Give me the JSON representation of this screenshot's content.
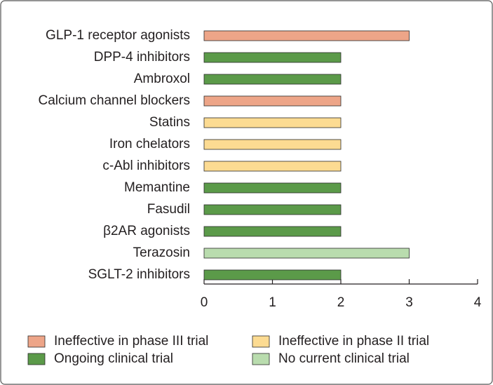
{
  "chart_data": {
    "type": "barh",
    "categories": [
      "GLP-1 receptor agonists",
      "DPP-4 inhibitors",
      "Ambroxol",
      "Calcium channel blockers",
      "Statins",
      "Iron chelators",
      "c-Abl inhibitors",
      "Memantine",
      "Fasudil",
      "β2AR agonists",
      "Terazosin",
      "SGLT-2 inhibitors"
    ],
    "series": [
      {
        "name": "Ineffective in phase III trial",
        "color": "#eda588",
        "values": [
          3,
          null,
          null,
          2,
          null,
          null,
          null,
          null,
          null,
          null,
          null,
          null
        ]
      },
      {
        "name": "Ineffective in phase II trial",
        "color": "#fcdb92",
        "values": [
          null,
          null,
          null,
          null,
          2,
          2,
          2,
          null,
          null,
          null,
          null,
          null
        ]
      },
      {
        "name": "Ongoing clinical trial",
        "color": "#5b9a49",
        "values": [
          null,
          2,
          2,
          null,
          null,
          null,
          null,
          2,
          2,
          2,
          null,
          2
        ]
      },
      {
        "name": "No current clinical trial",
        "color": "#b9dcae",
        "values": [
          null,
          null,
          null,
          null,
          null,
          null,
          null,
          null,
          null,
          null,
          3,
          null
        ]
      }
    ],
    "xlim": [
      0,
      4
    ],
    "xticks": [
      0,
      1,
      2,
      3,
      4
    ]
  }
}
